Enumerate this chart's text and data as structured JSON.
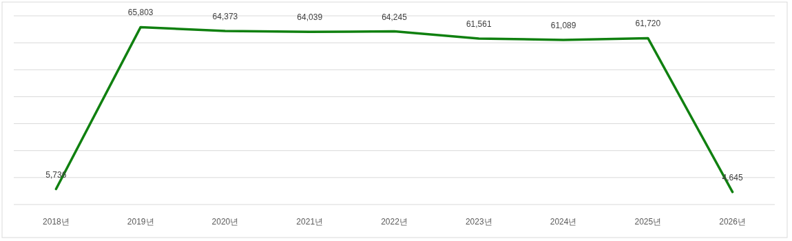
{
  "chart_data": {
    "type": "line",
    "categories": [
      "2018년",
      "2019년",
      "2020년",
      "2021년",
      "2022년",
      "2023년",
      "2024년",
      "2025년",
      "2026년"
    ],
    "series": [
      {
        "color": "#108010",
        "values": [
          5736,
          65803,
          64373,
          64039,
          64245,
          61561,
          61089,
          61720,
          4645
        ],
        "value_labels": [
          "5,736",
          "65,803",
          "64,373",
          "64,039",
          "64,245",
          "61,561",
          "61,089",
          "61,720",
          "4,645"
        ]
      }
    ],
    "ylim": [
      0,
      70000
    ],
    "yticks": [
      {
        "value": 0,
        "label": null
      },
      {
        "value": 10000,
        "label": null
      },
      {
        "value": 20000,
        "label": null
      },
      {
        "value": 30000,
        "label": null
      },
      {
        "value": 40000,
        "label": null
      },
      {
        "value": 50000,
        "label": null
      },
      {
        "value": 60000,
        "label": null
      },
      {
        "value": 70000,
        "label": null
      }
    ],
    "tick_labels": "x",
    "grid": "y",
    "marker": "none",
    "line_style": "solid"
  }
}
